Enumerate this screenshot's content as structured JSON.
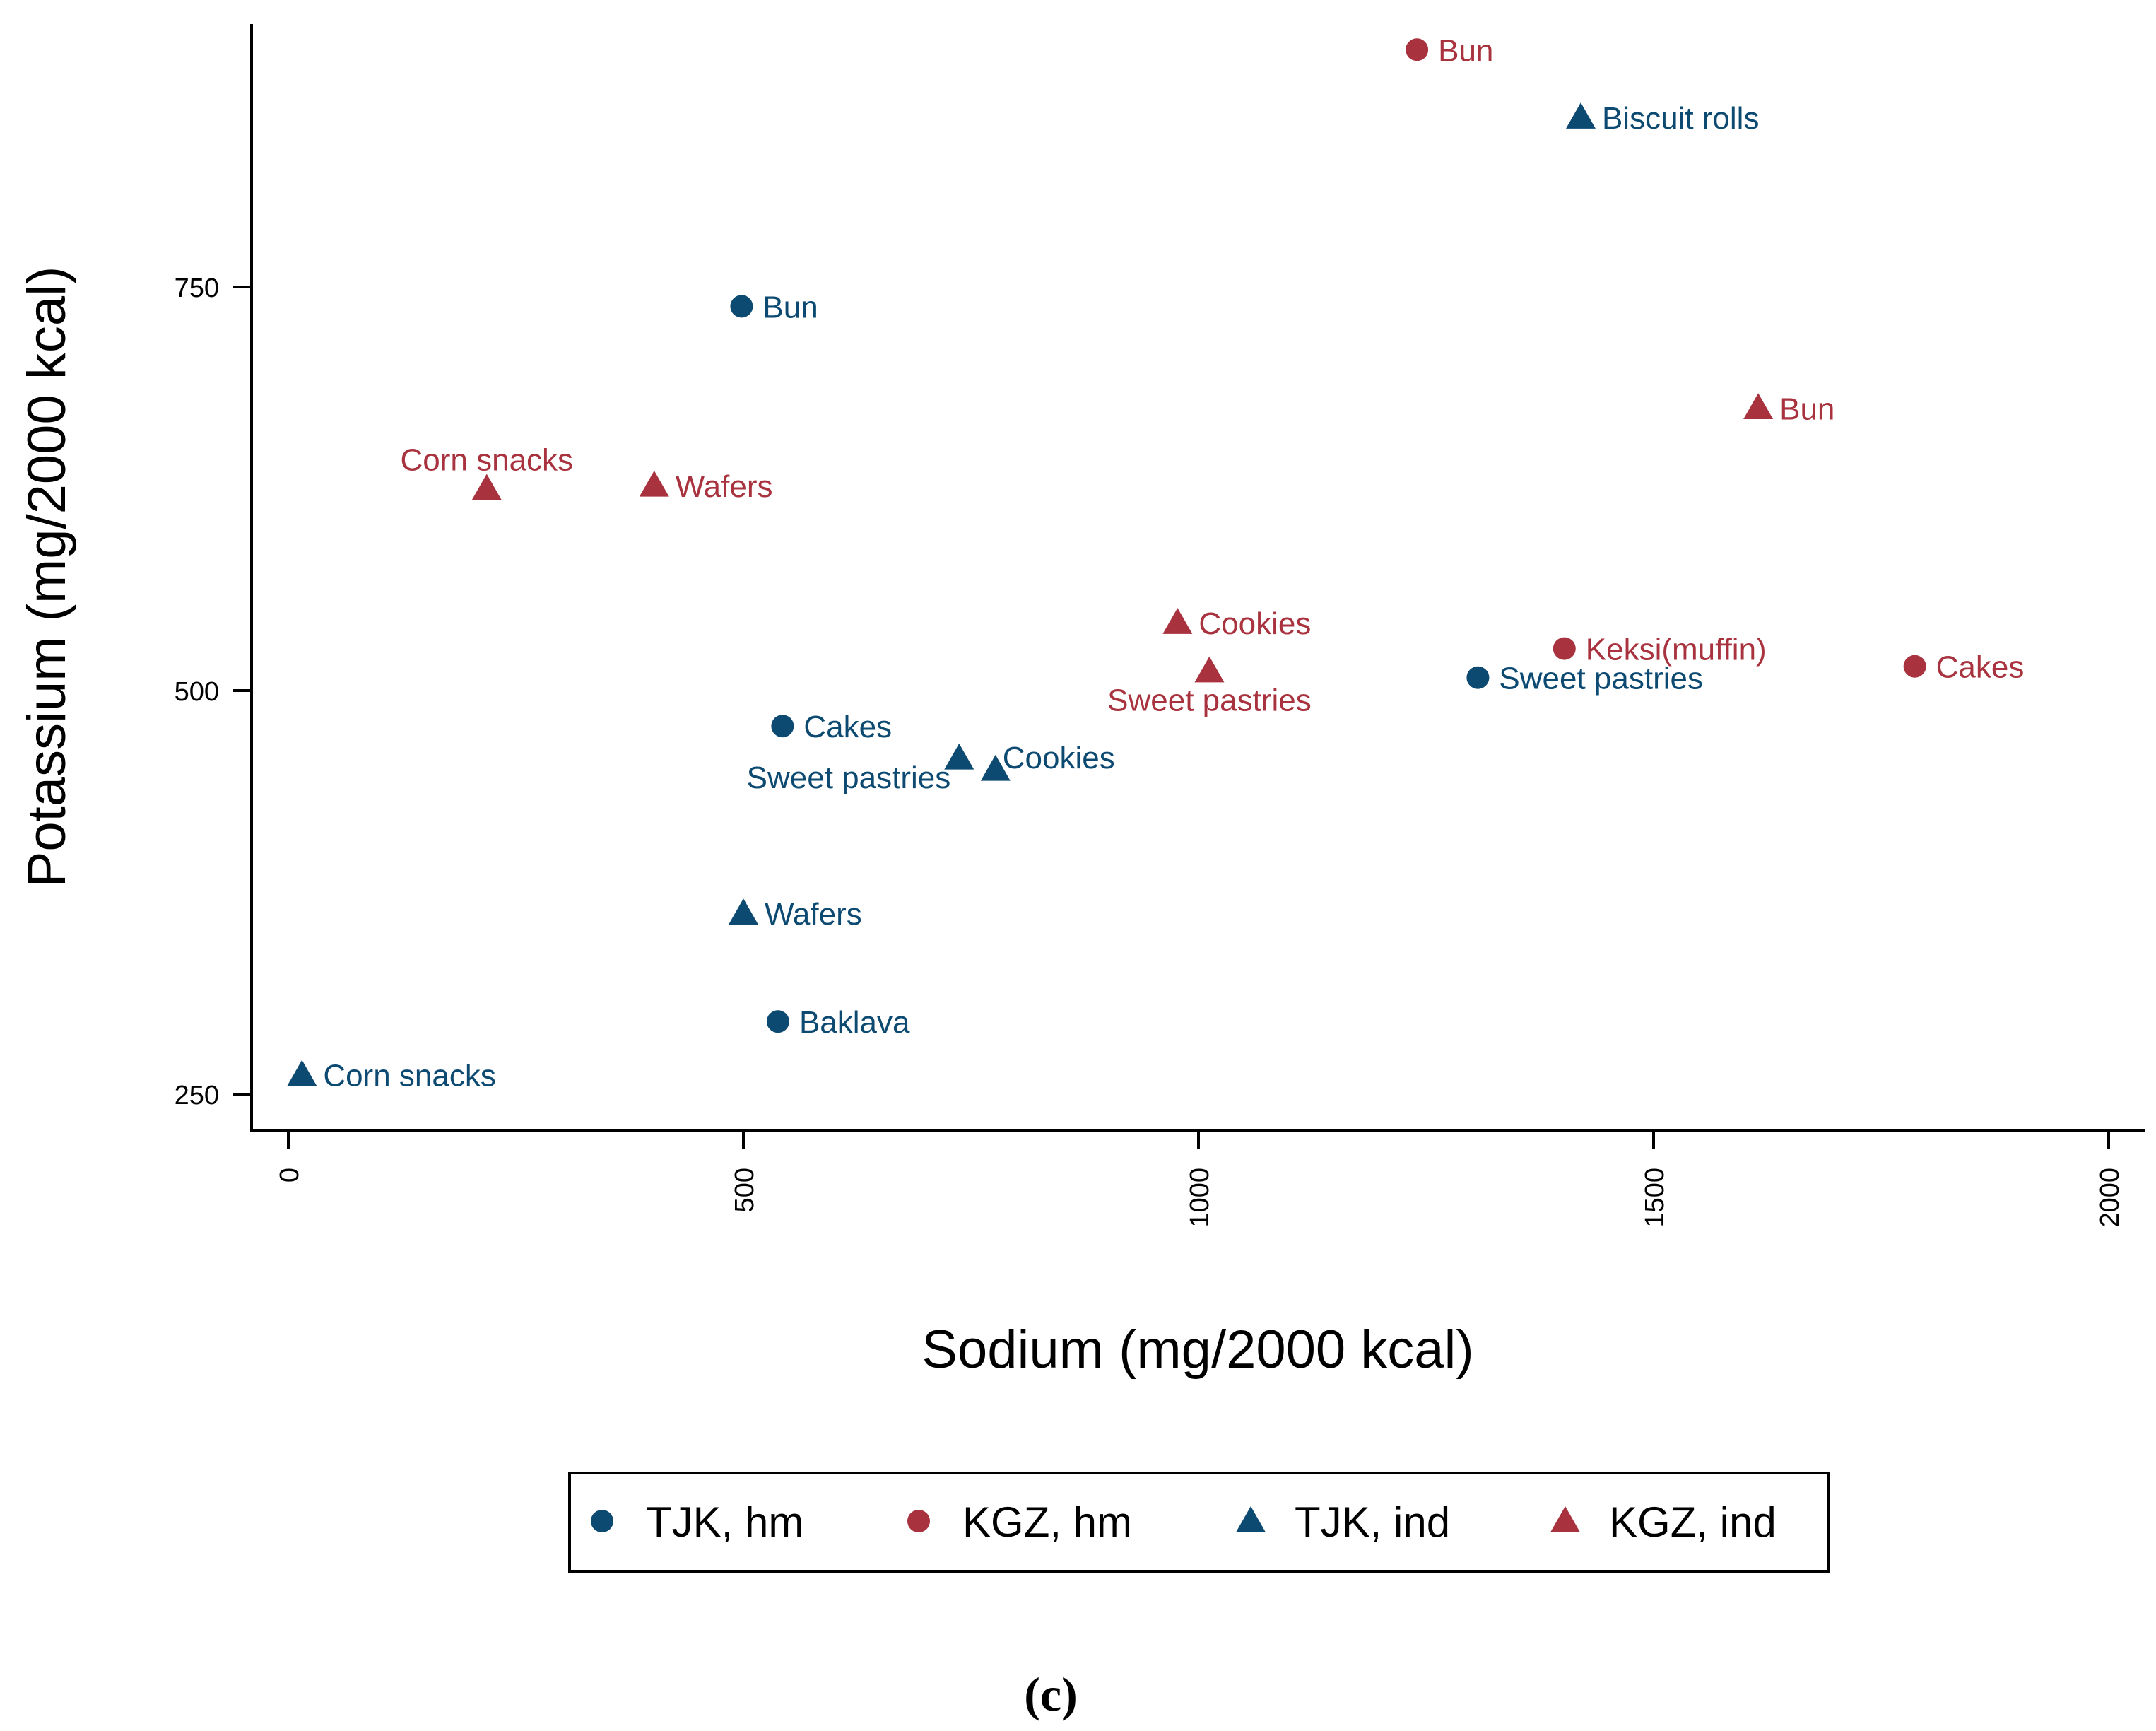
{
  "colors": {
    "TJK": "#0d4a72",
    "KGZ": "#a8323e",
    "axis": "#000000"
  },
  "chart_data": {
    "type": "scatter",
    "title": "",
    "panel_label": "(c)",
    "xlabel": "Sodium (mg/2000 kcal)",
    "ylabel": "Potassium (mg/2000 kcal)",
    "xlim": [
      -40,
      2040
    ],
    "ylim": [
      226,
      930
    ],
    "xticks": [
      0,
      500,
      1000,
      1500,
      2000
    ],
    "yticks": [
      250,
      500,
      750
    ],
    "grid": false,
    "legend_position": "bottom",
    "series": [
      {
        "name": "TJK, hm",
        "color_key": "TJK",
        "marker": "circle",
        "points": [
          {
            "label": "Baklava",
            "x": 538,
            "y": 295
          },
          {
            "label": "Bun",
            "x": 498,
            "y": 738
          },
          {
            "label": "Cakes",
            "x": 543,
            "y": 478
          },
          {
            "label": "Sweet pastries",
            "x": 1307,
            "y": 508
          }
        ]
      },
      {
        "name": "KGZ, hm",
        "color_key": "KGZ",
        "marker": "circle",
        "points": [
          {
            "label": "Bun",
            "x": 1240,
            "y": 897
          },
          {
            "label": "Keksi(muffin)",
            "x": 1402,
            "y": 526
          },
          {
            "label": "Cakes",
            "x": 1787,
            "y": 515
          }
        ]
      },
      {
        "name": "TJK, ind",
        "color_key": "TJK",
        "marker": "triangle",
        "points": [
          {
            "label": "Biscuit rolls",
            "x": 1420,
            "y": 855
          },
          {
            "label": "Sweet pastries",
            "x": 737,
            "y": 458
          },
          {
            "label": "Cookies",
            "x": 777,
            "y": 451
          },
          {
            "label": "Wafers",
            "x": 500,
            "y": 362
          },
          {
            "label": "Corn snacks",
            "x": 15,
            "y": 262
          }
        ]
      },
      {
        "name": "KGZ, ind",
        "color_key": "KGZ",
        "marker": "triangle",
        "points": [
          {
            "label": "Bun",
            "x": 1615,
            "y": 675
          },
          {
            "label": "Corn snacks",
            "x": 218,
            "y": 625
          },
          {
            "label": "Wafers",
            "x": 402,
            "y": 627
          },
          {
            "label": "Cookies",
            "x": 977,
            "y": 542
          },
          {
            "label": "Sweet pastries",
            "x": 1012,
            "y": 512
          }
        ]
      }
    ]
  }
}
